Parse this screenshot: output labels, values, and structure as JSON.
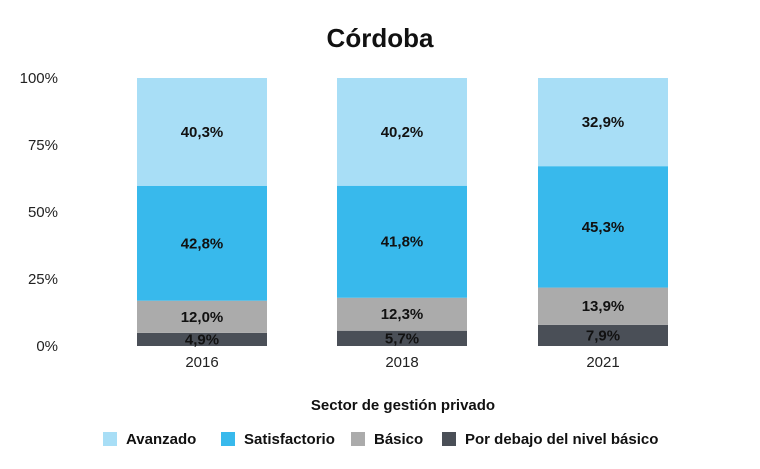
{
  "chart_data": {
    "type": "bar",
    "stacked": true,
    "title": "Córdoba",
    "xlabel": "Sector de gestión privado",
    "ylabel": "",
    "categories": [
      "2016",
      "2018",
      "2021"
    ],
    "ylim": [
      0,
      100
    ],
    "yticks": [
      "0%",
      "25%",
      "50%",
      "75%",
      "100%"
    ],
    "legend_position": "bottom",
    "series": [
      {
        "name": "Por debajo del nivel básico",
        "color": "#4a4f57",
        "values": [
          4.9,
          5.7,
          7.9
        ],
        "labels": [
          "4,9%",
          "5,7%",
          "7,9%"
        ]
      },
      {
        "name": "Básico",
        "color": "#ababab",
        "values": [
          12.0,
          12.3,
          13.9
        ],
        "labels": [
          "12,0%",
          "12,3%",
          "13,9%"
        ]
      },
      {
        "name": "Satisfactorio",
        "color": "#38b9ec",
        "values": [
          42.8,
          41.8,
          45.3
        ],
        "labels": [
          "42,8%",
          "41,8%",
          "45,3%"
        ]
      },
      {
        "name": "Avanzado",
        "color": "#a8def6",
        "values": [
          40.3,
          40.2,
          32.9
        ],
        "labels": [
          "40,3%",
          "40,2%",
          "32,9%"
        ]
      }
    ],
    "legend_order": [
      "Avanzado",
      "Satisfactorio",
      "Básico",
      "Por debajo del nivel básico"
    ]
  }
}
